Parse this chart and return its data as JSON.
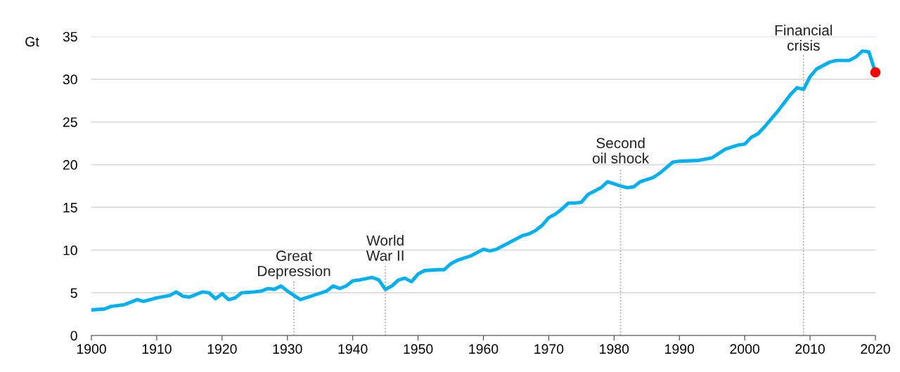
{
  "chart_data": {
    "type": "line",
    "ylabel": "Gt",
    "x": [
      1900,
      1902,
      1903,
      1905,
      1907,
      1908,
      1910,
      1912,
      1913,
      1914,
      1915,
      1917,
      1918,
      1919,
      1920,
      1921,
      1922,
      1923,
      1925,
      1926,
      1927,
      1928,
      1929,
      1930,
      1932,
      1934,
      1936,
      1937,
      1938,
      1939,
      1940,
      1941,
      1943,
      1944,
      1945,
      1946,
      1947,
      1948,
      1949,
      1950,
      1951,
      1953,
      1954,
      1955,
      1956,
      1958,
      1960,
      1961,
      1962,
      1964,
      1966,
      1967,
      1968,
      1969,
      1970,
      1971,
      1972,
      1973,
      1974,
      1975,
      1976,
      1978,
      1979,
      1981,
      1982,
      1983,
      1984,
      1986,
      1987,
      1989,
      1990,
      1993,
      1995,
      1997,
      1999,
      2000,
      2001,
      2002,
      2003,
      2005,
      2007,
      2008,
      2009,
      2010,
      2011,
      2013,
      2014,
      2016,
      2017,
      2018,
      2019,
      2020
    ],
    "series": [
      {
        "color": "#00b0f0",
        "values": [
          3.0,
          3.1,
          3.4,
          3.6,
          4.2,
          4.0,
          4.4,
          4.7,
          5.1,
          4.6,
          4.5,
          5.1,
          5.0,
          4.3,
          4.9,
          4.2,
          4.4,
          5.0,
          5.1,
          5.2,
          5.5,
          5.4,
          5.8,
          5.2,
          4.2,
          4.7,
          5.2,
          5.8,
          5.5,
          5.8,
          6.4,
          6.5,
          6.8,
          6.5,
          5.4,
          5.8,
          6.5,
          6.7,
          6.3,
          7.2,
          7.6,
          7.7,
          7.7,
          8.4,
          8.8,
          9.3,
          10.1,
          9.9,
          10.1,
          10.9,
          11.7,
          11.9,
          12.3,
          12.9,
          13.8,
          14.2,
          14.8,
          15.5,
          15.5,
          15.6,
          16.5,
          17.3,
          18.0,
          17.5,
          17.3,
          17.4,
          18.0,
          18.5,
          19.0,
          20.3,
          20.4,
          20.5,
          20.8,
          21.8,
          22.3,
          22.4,
          23.2,
          23.6,
          24.4,
          26.2,
          28.2,
          29.0,
          28.8,
          30.3,
          31.2,
          32.0,
          32.2,
          32.2,
          32.6,
          33.3,
          33.2,
          30.8
        ]
      },
      {
        "type": "scatter",
        "color": "#ff0000",
        "x": [
          2020
        ],
        "values": [
          30.8
        ]
      }
    ],
    "xlim": [
      1900,
      2020
    ],
    "xticks": [
      1900,
      1910,
      1920,
      1930,
      1940,
      1950,
      1960,
      1970,
      1980,
      1990,
      2000,
      2010,
      2020
    ],
    "ylim": [
      0,
      35
    ],
    "yticks": [
      0,
      5,
      10,
      15,
      20,
      25,
      30,
      35
    ],
    "grid": "y",
    "ref_lines": [
      {
        "axis": "x",
        "value": 1931,
        "color": "#a6a6a6",
        "line_style": "dotted",
        "label": "Great\nDepression"
      },
      {
        "axis": "x",
        "value": 1945,
        "color": "#a6a6a6",
        "line_style": "dotted",
        "label": "World\nWar II"
      },
      {
        "axis": "x",
        "value": 1981,
        "color": "#a6a6a6",
        "line_style": "dotted",
        "label": "Second\noil shock"
      },
      {
        "axis": "x",
        "value": 2009,
        "color": "#a6a6a6",
        "line_style": "dotted",
        "label": "Financial\ncrisis"
      }
    ]
  }
}
